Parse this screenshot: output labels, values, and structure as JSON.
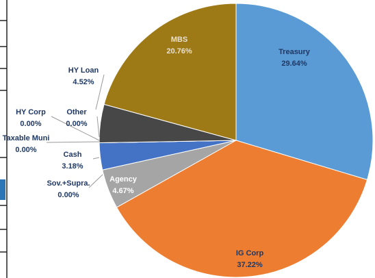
{
  "chart_data": {
    "type": "pie",
    "categories": [
      "Treasury",
      "IG Corp",
      "Agency",
      "Sov.+Supra.",
      "Cash",
      "Taxable Muni",
      "HY Corp",
      "Other",
      "HY Loan",
      "MBS"
    ],
    "values": [
      29.64,
      37.22,
      4.67,
      0.0,
      3.18,
      0.0,
      0.0,
      0.0,
      4.52,
      20.76
    ],
    "value_labels": [
      "29.64%",
      "37.22%",
      "4.67%",
      "0.00%",
      "3.18%",
      "0.00%",
      "0.00%",
      "0.00%",
      "4.52%",
      "20.76%"
    ],
    "colors": [
      "#5b9bd5",
      "#ed7d31",
      "#a5a5a5",
      "#ffc000",
      "#4472c4",
      "#70ad47",
      "#264478",
      "#636363",
      "#474747",
      "#9e7a16"
    ]
  }
}
